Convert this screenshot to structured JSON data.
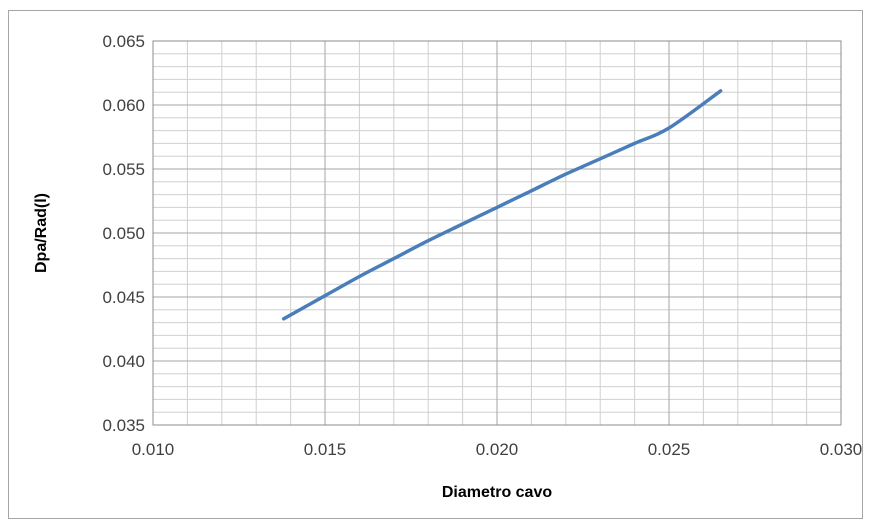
{
  "chart_data": {
    "type": "line",
    "title": "",
    "xlabel": "Diametro cavo",
    "ylabel": "Dpa/Rad(l)",
    "xlim": [
      0.01,
      0.03
    ],
    "ylim": [
      0.035,
      0.065
    ],
    "x_ticks": [
      "0.010",
      "0.015",
      "0.020",
      "0.025",
      "0.030"
    ],
    "y_ticks": [
      "0.035",
      "0.040",
      "0.045",
      "0.050",
      "0.055",
      "0.060",
      "0.065"
    ],
    "grid": true,
    "legend": "none",
    "series": [
      {
        "color": "#4a7ebb",
        "x": [
          0.0138,
          0.015,
          0.016,
          0.017,
          0.018,
          0.019,
          0.02,
          0.021,
          0.022,
          0.023,
          0.024,
          0.025,
          0.0265
        ],
        "y": [
          0.0433,
          0.0451,
          0.0466,
          0.048,
          0.0494,
          0.0507,
          0.052,
          0.0533,
          0.0546,
          0.0558,
          0.057,
          0.0582,
          0.0611
        ]
      }
    ]
  }
}
